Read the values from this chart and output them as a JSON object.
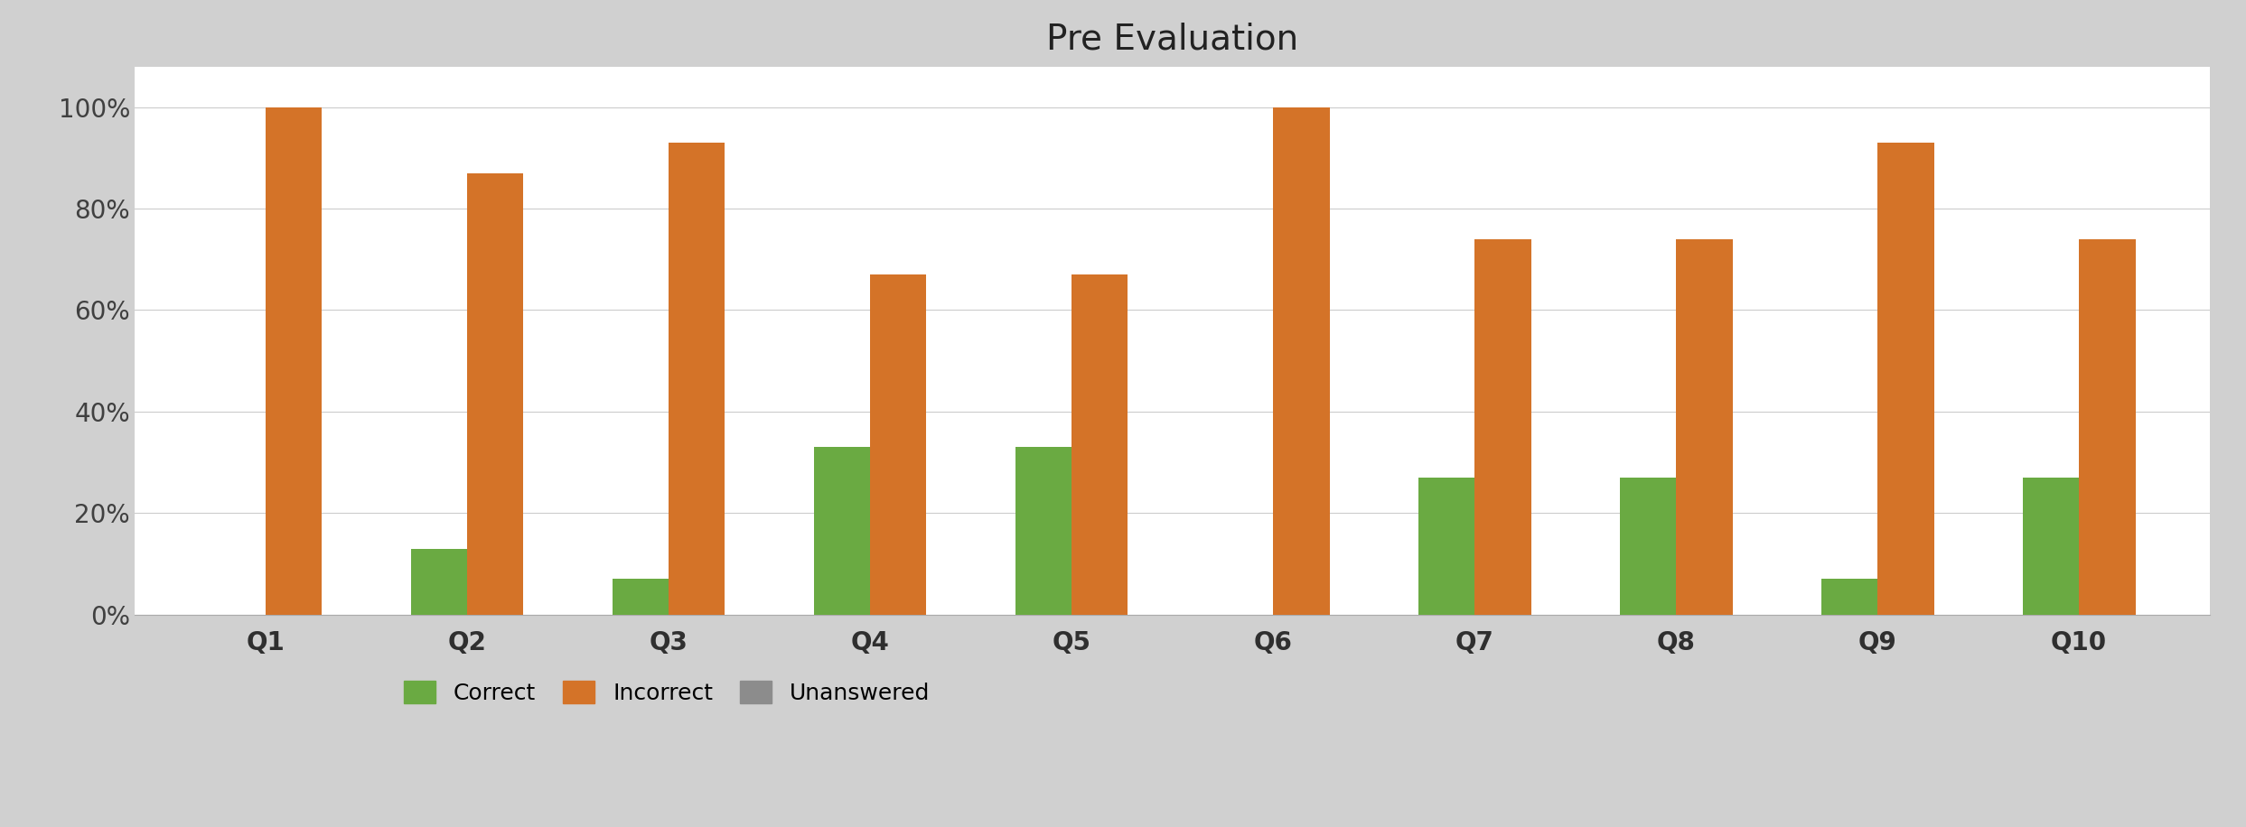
{
  "title": "Pre Evaluation",
  "categories": [
    "Q1",
    "Q2",
    "Q3",
    "Q4",
    "Q5",
    "Q6",
    "Q7",
    "Q8",
    "Q9",
    "Q10"
  ],
  "correct": [
    0.0,
    0.13,
    0.07,
    0.33,
    0.33,
    0.0,
    0.27,
    0.27,
    0.07,
    0.27
  ],
  "incorrect": [
    1.0,
    0.87,
    0.93,
    0.67,
    0.67,
    1.0,
    0.74,
    0.74,
    0.93,
    0.74
  ],
  "unanswered": [
    0.0,
    0.0,
    0.0,
    0.0,
    0.0,
    0.0,
    0.0,
    0.0,
    0.0,
    0.0
  ],
  "color_correct": "#6aaa42",
  "color_incorrect": "#d47328",
  "color_unanswered": "#8c8c8c",
  "bar_width": 0.28,
  "ylim": [
    0,
    1.08
  ],
  "yticks": [
    0.0,
    0.2,
    0.4,
    0.6,
    0.8,
    1.0
  ],
  "ytick_labels": [
    "0%",
    "20%",
    "40%",
    "60%",
    "80%",
    "100%"
  ],
  "title_fontsize": 28,
  "tick_fontsize": 20,
  "legend_fontsize": 18,
  "background_color": "#ffffff",
  "border_color": "#d0d0d0",
  "grid_color": "#cccccc"
}
